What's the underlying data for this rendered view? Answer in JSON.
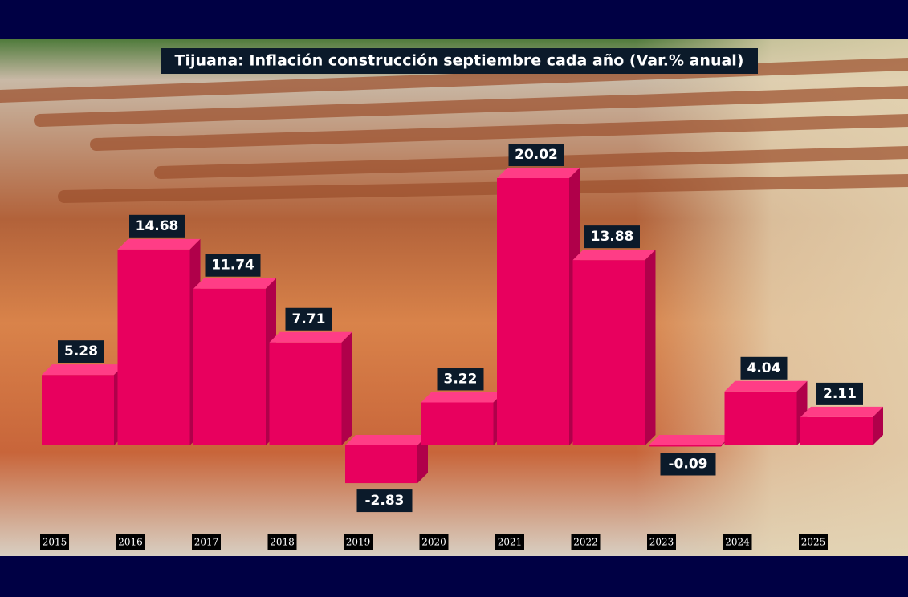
{
  "chart_data": {
    "type": "bar3d",
    "title": "Tijuana: Inflación construcción septiembre cada año (Var.% anual)",
    "categories": [
      "2015",
      "2016",
      "2017",
      "2018",
      "2019",
      "2020",
      "2021",
      "2022",
      "2023",
      "2024",
      "2025"
    ],
    "values": [
      5.28,
      14.68,
      11.74,
      7.71,
      -2.83,
      3.22,
      20.02,
      13.88,
      -0.09,
      4.04,
      2.11
    ],
    "color": "#e8005e"
  }
}
